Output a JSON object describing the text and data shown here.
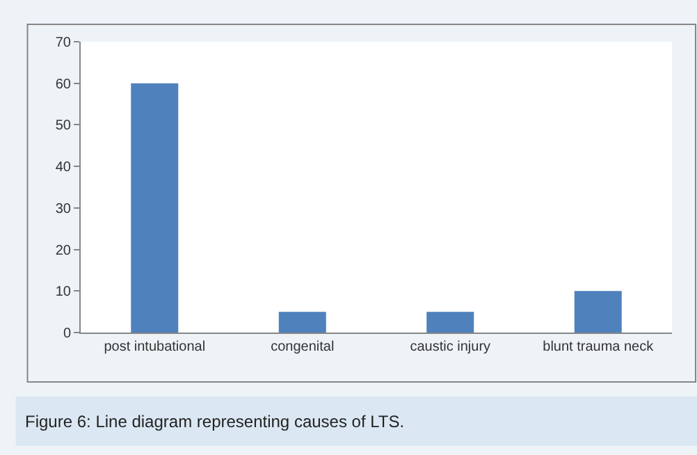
{
  "chart_data": {
    "type": "bar",
    "categories": [
      "post intubational",
      "congenital",
      "caustic injury",
      "blunt trauma neck"
    ],
    "values": [
      60,
      5,
      5,
      10
    ],
    "color": "#4f81bd",
    "ylim": [
      0,
      70
    ],
    "yticks": [
      0,
      10,
      20,
      30,
      40,
      50,
      60,
      70
    ],
    "annotations": [
      "Figure 6: Line diagram representing causes of LTS."
    ]
  }
}
